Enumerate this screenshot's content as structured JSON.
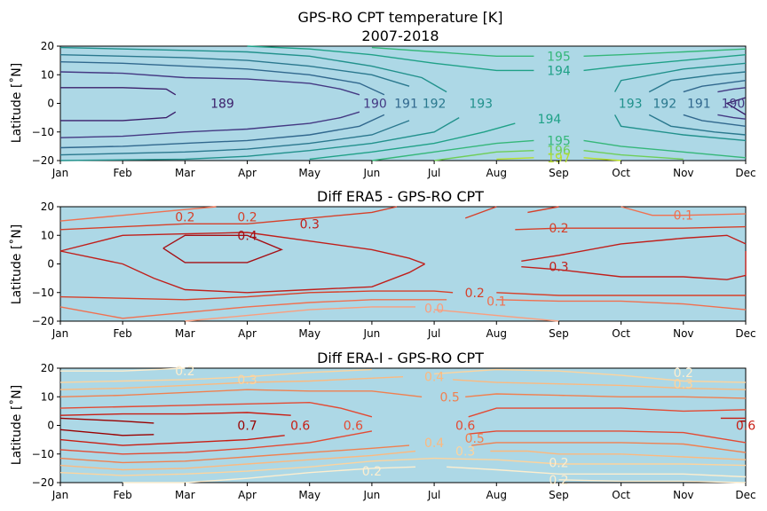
{
  "chart_data": [
    {
      "type": "contour",
      "title": "GPS-RO CPT temperature [K]",
      "subtitle": "2007-2018",
      "ylabel": "Latitude [˚N]",
      "x_ticks": [
        "Jan",
        "Feb",
        "Mar",
        "Apr",
        "May",
        "Jun",
        "Jul",
        "Aug",
        "Sep",
        "Oct",
        "Nov",
        "Dec"
      ],
      "y_ticks": [
        "20",
        "10",
        "0",
        "−10",
        "−20"
      ],
      "ylim": [
        -20,
        20
      ],
      "background": "#add8e6",
      "colormap": "viridis",
      "levels": [
        189,
        190,
        191,
        192,
        193,
        194,
        195,
        196,
        197
      ],
      "contour_labels": [
        {
          "text": "195",
          "month": 8.0,
          "lat": 16.5,
          "color": "#35b779"
        },
        {
          "text": "194",
          "month": 8.0,
          "lat": 11.5,
          "color": "#1fa187"
        },
        {
          "text": "189",
          "month": 2.6,
          "lat": 0,
          "color": "#3b1f6b"
        },
        {
          "text": "190",
          "month": 5.05,
          "lat": 0,
          "color": "#443983"
        },
        {
          "text": "191",
          "month": 5.55,
          "lat": 0,
          "color": "#31688e"
        },
        {
          "text": "192",
          "month": 6.0,
          "lat": 0,
          "color": "#2a788e"
        },
        {
          "text": "193",
          "month": 6.75,
          "lat": 0,
          "color": "#21918c"
        },
        {
          "text": "194",
          "month": 7.85,
          "lat": -5.5,
          "color": "#1fa187"
        },
        {
          "text": "195",
          "month": 8.0,
          "lat": -13,
          "color": "#35b779"
        },
        {
          "text": "196",
          "month": 8.0,
          "lat": -16.5,
          "color": "#6ece58"
        },
        {
          "text": "197",
          "month": 8.0,
          "lat": -19,
          "color": "#b5de2b"
        },
        {
          "text": "193",
          "month": 9.15,
          "lat": 0,
          "color": "#21918c"
        },
        {
          "text": "192",
          "month": 9.7,
          "lat": 0,
          "color": "#2a788e"
        },
        {
          "text": "191",
          "month": 10.25,
          "lat": 0,
          "color": "#31688e"
        },
        {
          "text": "190",
          "month": 10.8,
          "lat": 0,
          "color": "#443983"
        }
      ]
    },
    {
      "type": "contour",
      "title": "Diff ERA5 - GPS-RO CPT",
      "ylabel": "Latitude [˚N]",
      "x_ticks": [
        "Jan",
        "Feb",
        "Mar",
        "Apr",
        "May",
        "Jun",
        "Jul",
        "Aug",
        "Sep",
        "Oct",
        "Nov",
        "Dec"
      ],
      "y_ticks": [
        "20",
        "10",
        "0",
        "−10",
        "−20"
      ],
      "ylim": [
        -20,
        20
      ],
      "background": "#add8e6",
      "colormap": "Reds",
      "levels": [
        0.0,
        0.1,
        0.2,
        0.3,
        0.4
      ],
      "contour_labels": [
        {
          "text": "0.2",
          "month": 2.0,
          "lat": 16.5,
          "color": "#d6402a"
        },
        {
          "text": "0.2",
          "month": 3.0,
          "lat": 16.5,
          "color": "#d6402a"
        },
        {
          "text": "0.3",
          "month": 4.0,
          "lat": 14,
          "color": "#c01f1b"
        },
        {
          "text": "0.4",
          "month": 3.0,
          "lat": 10,
          "color": "#a50f15"
        },
        {
          "text": "0.2",
          "month": 8.0,
          "lat": 12.5,
          "color": "#d6402a"
        },
        {
          "text": "0.1",
          "month": 10.0,
          "lat": 17,
          "color": "#f07050"
        },
        {
          "text": "0.3",
          "month": 8.0,
          "lat": -1,
          "color": "#c01f1b"
        },
        {
          "text": "0.2",
          "month": 6.65,
          "lat": -10,
          "color": "#d6402a"
        },
        {
          "text": "0.1",
          "month": 7.0,
          "lat": -13,
          "color": "#f07050"
        },
        {
          "text": "0.0",
          "month": 6.0,
          "lat": -15.5,
          "color": "#fa9e7e"
        }
      ]
    },
    {
      "type": "contour",
      "title": "Diff ERA-I - GPS-RO CPT",
      "ylabel": "Latitude [˚N]",
      "x_ticks": [
        "Jan",
        "Feb",
        "Mar",
        "Apr",
        "May",
        "Jun",
        "Jul",
        "Aug",
        "Sep",
        "Oct",
        "Nov",
        "Dec"
      ],
      "y_ticks": [
        "20",
        "10",
        "0",
        "−10",
        "−20"
      ],
      "ylim": [
        -20,
        20
      ],
      "background": "#add8e6",
      "colormap": "OrRd",
      "levels": [
        0.1,
        0.2,
        0.3,
        0.4,
        0.5,
        0.6,
        0.7
      ],
      "contour_labels": [
        {
          "text": "0.2",
          "month": 2.0,
          "lat": 19,
          "color": "#fdeecf"
        },
        {
          "text": "0.3",
          "month": 3.0,
          "lat": 16,
          "color": "#fdd49e"
        },
        {
          "text": "0.4",
          "month": 6.0,
          "lat": 17,
          "color": "#fcb97f"
        },
        {
          "text": "0.5",
          "month": 6.25,
          "lat": 10,
          "color": "#f08050"
        },
        {
          "text": "0.2",
          "month": 10.0,
          "lat": 18.5,
          "color": "#fdeecf"
        },
        {
          "text": "0.3",
          "month": 10.0,
          "lat": 14.5,
          "color": "#fdd49e"
        },
        {
          "text": "0.7",
          "month": 3.0,
          "lat": 0,
          "color": "#990000"
        },
        {
          "text": "0.6",
          "month": 3.85,
          "lat": 0,
          "color": "#c81d13"
        },
        {
          "text": "0.6",
          "month": 4.7,
          "lat": 0,
          "color": "#e34a33"
        },
        {
          "text": "0.6",
          "month": 6.5,
          "lat": 0,
          "color": "#e34a33"
        },
        {
          "text": "0.5",
          "month": 6.65,
          "lat": -4.5,
          "color": "#f08050"
        },
        {
          "text": "0.4",
          "month": 6.0,
          "lat": -6,
          "color": "#fcb97f"
        },
        {
          "text": "0.3",
          "month": 6.5,
          "lat": -9,
          "color": "#fdd49e"
        },
        {
          "text": "0.6",
          "month": 11.0,
          "lat": 0,
          "color": "#c81d13"
        },
        {
          "text": "0.2",
          "month": 5.0,
          "lat": -16,
          "color": "#fdeecf"
        },
        {
          "text": "0.2",
          "month": 8.0,
          "lat": -13,
          "color": "#fdeecf"
        },
        {
          "text": "0.2",
          "month": 8.0,
          "lat": -19,
          "color": "#fdeecf"
        }
      ]
    }
  ]
}
